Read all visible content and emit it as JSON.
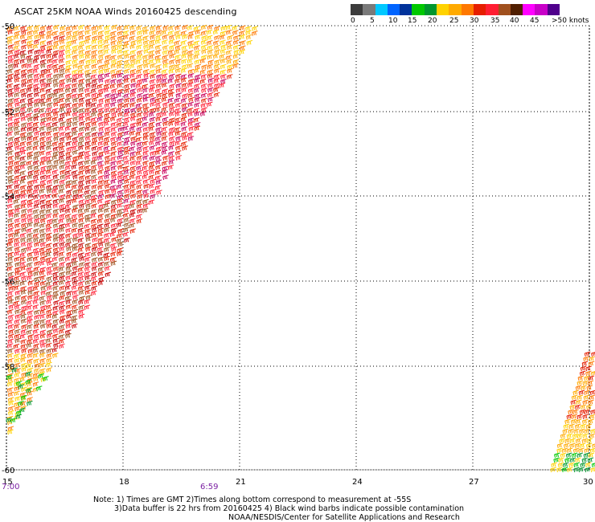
{
  "title": "ASCAT 25KM NOAA Winds 20160425 descending",
  "colorbar": {
    "colors": [
      "#3c3c3c",
      "#7a7a7a",
      "#00c8ff",
      "#0064ff",
      "#00329b",
      "#00c800",
      "#00962d",
      "#ffd200",
      "#ffaa00",
      "#ff7800",
      "#e61e00",
      "#ff1e32",
      "#a0501e",
      "#501e00",
      "#ff00ff",
      "#c800c8",
      "#50008c"
    ],
    "labels": [
      "0",
      "5",
      "10",
      "15",
      "20",
      "25",
      "30",
      "35",
      "40",
      "45",
      ">50 knots"
    ]
  },
  "lat_labels": [
    "-50",
    "-52",
    "-54",
    "-56",
    "-58",
    "-60"
  ],
  "lon_labels": [
    "15",
    "18",
    "21",
    "24",
    "27",
    "30"
  ],
  "time_labels": [
    "7:00",
    "6:59"
  ],
  "notes": [
    "Note: 1) Times are GMT 2)Times along bottom correspond to measurement at -55S",
    "3)Data buffer is 22 hrs from 20160425 4) Black wind barbs indicate possible contamination",
    "NOAA/NESDIS/Center for Satellite Applications and Research"
  ]
}
